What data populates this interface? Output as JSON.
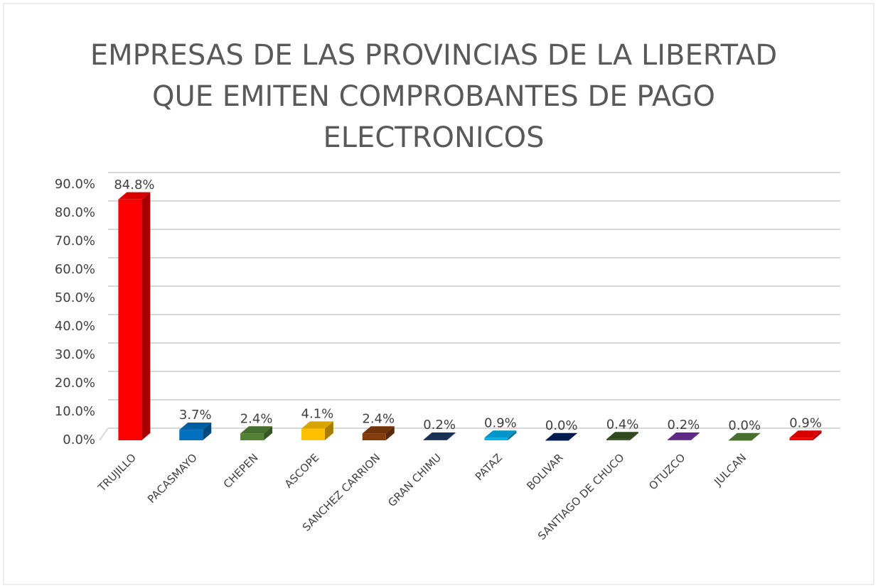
{
  "chart_data": {
    "type": "bar3d",
    "title": [
      "EMPRESAS DE LAS PROVINCIAS DE LA LIBERTAD",
      "QUE EMITEN COMPROBANTES DE PAGO",
      "ELECTRONICOS"
    ],
    "categories": [
      "TRUJILLO",
      "PACASMAYO",
      "CHEPEN",
      "ASCOPE",
      "SANCHEZ CARRION",
      "GRAN CHIMU",
      "PATAZ",
      "BOLIVAR",
      "SANTIAGO DE CHUCO",
      "OTUZCO",
      "JULCAN",
      null
    ],
    "values": [
      84.8,
      3.7,
      2.4,
      4.1,
      2.4,
      0.2,
      0.9,
      0.0,
      0.4,
      0.2,
      0.0,
      0.9
    ],
    "value_labels": [
      "84.8%",
      "3.7%",
      "2.4%",
      "4.1%",
      "2.4%",
      "0.2%",
      "0.9%",
      "0.0%",
      "0.4%",
      "0.2%",
      "0.0%",
      "0.9%"
    ],
    "colors": [
      "#ff0000",
      "#0070c0",
      "#548235",
      "#ffc000",
      "#843c0c",
      "#1f3864",
      "#00b0f0",
      "#002060",
      "#375623",
      "#7030a0",
      "#548235",
      "#ff0000"
    ],
    "ylim": [
      0,
      90
    ],
    "yticks": [
      {
        "value": 0,
        "label": "0.0%"
      },
      {
        "value": 10,
        "label": "10.0%"
      },
      {
        "value": 20,
        "label": "20.0%"
      },
      {
        "value": 30,
        "label": "30.0%"
      },
      {
        "value": 40,
        "label": "40.0%"
      },
      {
        "value": 50,
        "label": "50.0%"
      },
      {
        "value": 60,
        "label": "60.0%"
      },
      {
        "value": 70,
        "label": "70.0%"
      },
      {
        "value": 80,
        "label": "80.0%"
      },
      {
        "value": 90,
        "label": "90.0%"
      }
    ],
    "grid": true
  }
}
